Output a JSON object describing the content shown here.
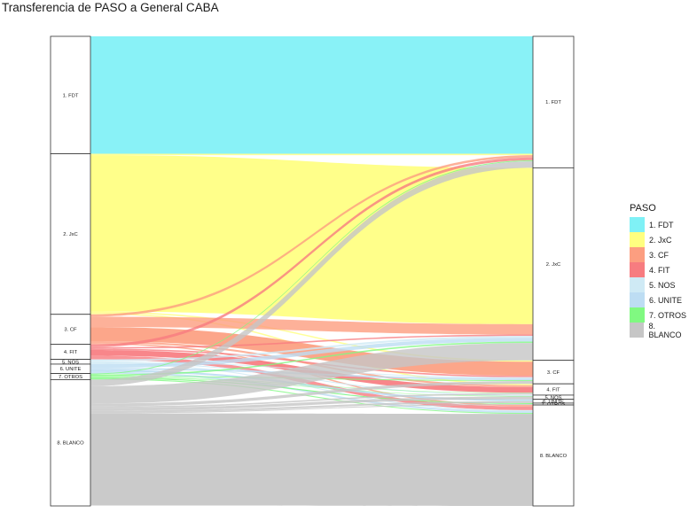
{
  "title": "Transferencia de PASO a General CABA",
  "legend": {
    "title": "PASO"
  },
  "colors": {
    "1. FDT": "#7FF1F6",
    "2. JxC": "#FFFF80",
    "3. CF": "#FC9E80",
    "4. FIT": "#F77C80",
    "5. NOS": "#CFEAF5",
    "6. UNITE": "#BDDDF3",
    "7. OTROS": "#80F981",
    "8. BLANCO": "#C6C6C6"
  },
  "chart_data": {
    "type": "sankey",
    "title": "Transferencia de PASO a General CABA",
    "legend_title": "PASO",
    "legend_position": "right",
    "left_axis": "PASO",
    "right_axis": "General",
    "left_nodes": [
      {
        "name": "1. FDT",
        "value": 25.0
      },
      {
        "name": "2. JxC",
        "value": 34.2
      },
      {
        "name": "3. CF",
        "value": 6.4
      },
      {
        "name": "4. FIT",
        "value": 3.2
      },
      {
        "name": "5. NOS",
        "value": 1.0
      },
      {
        "name": "6. UNITE",
        "value": 2.0
      },
      {
        "name": "7. OTROS",
        "value": 1.3
      },
      {
        "name": "8. BLANCO",
        "value": 26.9
      }
    ],
    "right_nodes": [
      {
        "name": "1. FDT",
        "value": 28.0
      },
      {
        "name": "2. JxC",
        "value": 41.0
      },
      {
        "name": "3. CF",
        "value": 5.0
      },
      {
        "name": "4. FIT",
        "value": 2.4
      },
      {
        "name": "5. NOS",
        "value": 0.9
      },
      {
        "name": "6. UNITE",
        "value": 0.8
      },
      {
        "name": "7. OTROS",
        "value": 0.4
      },
      {
        "name": "8. BLANCO",
        "value": 21.5
      }
    ],
    "flows": [
      {
        "from": "1. FDT",
        "to": "1. FDT",
        "value": 25.0
      },
      {
        "from": "2. JxC",
        "to": "1. FDT",
        "value": 0.3
      },
      {
        "from": "2. JxC",
        "to": "2. JxC",
        "value": 33.3
      },
      {
        "from": "2. JxC",
        "to": "3. CF",
        "value": 0.3
      },
      {
        "from": "2. JxC",
        "to": "4. FIT",
        "value": 0.3
      },
      {
        "from": "3. CF",
        "to": "1. FDT",
        "value": 0.5
      },
      {
        "from": "3. CF",
        "to": "2. JxC",
        "value": 2.2
      },
      {
        "from": "3. CF",
        "to": "3. CF",
        "value": 3.0
      },
      {
        "from": "3. CF",
        "to": "4. FIT",
        "value": 0.4
      },
      {
        "from": "3. CF",
        "to": "8. BLANCO",
        "value": 0.3
      },
      {
        "from": "4. FIT",
        "to": "1. FDT",
        "value": 0.6
      },
      {
        "from": "4. FIT",
        "to": "2. JxC",
        "value": 0.3
      },
      {
        "from": "4. FIT",
        "to": "3. CF",
        "value": 0.3
      },
      {
        "from": "4. FIT",
        "to": "4. FIT",
        "value": 1.2
      },
      {
        "from": "4. FIT",
        "to": "8. BLANCO",
        "value": 0.8
      },
      {
        "from": "5. NOS",
        "to": "2. JxC",
        "value": 0.4
      },
      {
        "from": "5. NOS",
        "to": "3. CF",
        "value": 0.2
      },
      {
        "from": "5. NOS",
        "to": "5. NOS",
        "value": 0.2
      },
      {
        "from": "5. NOS",
        "to": "8. BLANCO",
        "value": 0.2
      },
      {
        "from": "6. UNITE",
        "to": "2. JxC",
        "value": 0.8
      },
      {
        "from": "6. UNITE",
        "to": "3. CF",
        "value": 0.4
      },
      {
        "from": "6. UNITE",
        "to": "6. UNITE",
        "value": 0.4
      },
      {
        "from": "6. UNITE",
        "to": "8. BLANCO",
        "value": 0.4
      },
      {
        "from": "7. OTROS",
        "to": "1. FDT",
        "value": 0.2
      },
      {
        "from": "7. OTROS",
        "to": "2. JxC",
        "value": 0.3
      },
      {
        "from": "7. OTROS",
        "to": "3. CF",
        "value": 0.2
      },
      {
        "from": "7. OTROS",
        "to": "4. FIT",
        "value": 0.1
      },
      {
        "from": "7. OTROS",
        "to": "5. NOS",
        "value": 0.1
      },
      {
        "from": "7. OTROS",
        "to": "7. OTROS",
        "value": 0.2
      },
      {
        "from": "7. OTROS",
        "to": "8. BLANCO",
        "value": 0.2
      },
      {
        "from": "8. BLANCO",
        "to": "1. FDT",
        "value": 1.4
      },
      {
        "from": "8. BLANCO",
        "to": "2. JxC",
        "value": 3.7
      },
      {
        "from": "8. BLANCO",
        "to": "3. CF",
        "value": 0.6
      },
      {
        "from": "8. BLANCO",
        "to": "4. FIT",
        "value": 0.3
      },
      {
        "from": "8. BLANCO",
        "to": "5. NOS",
        "value": 0.6
      },
      {
        "from": "8. BLANCO",
        "to": "6. UNITE",
        "value": 0.4
      },
      {
        "from": "8. BLANCO",
        "to": "7. OTROS",
        "value": 0.2
      },
      {
        "from": "8. BLANCO",
        "to": "8. BLANCO",
        "value": 19.6
      }
    ]
  }
}
